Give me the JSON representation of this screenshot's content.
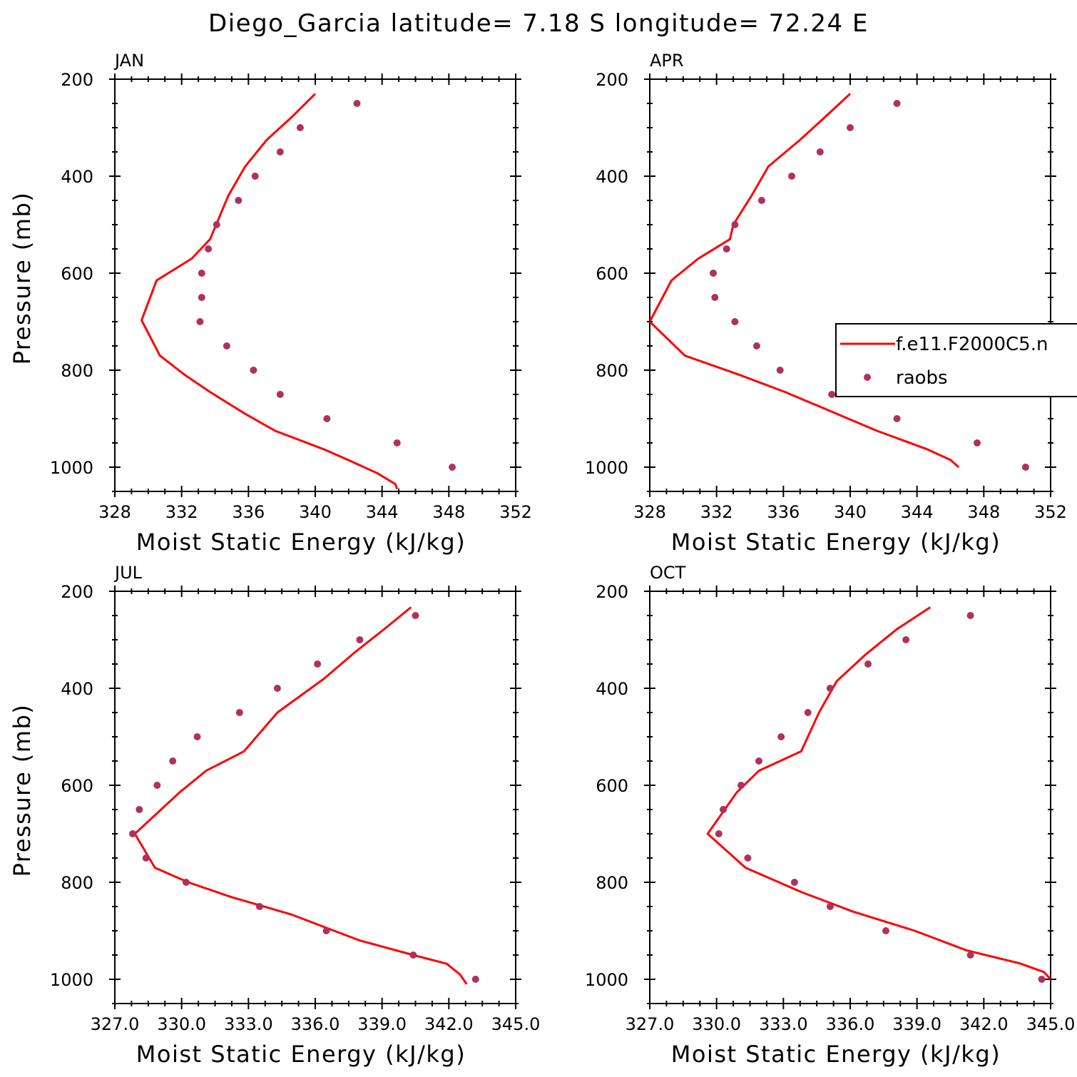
{
  "title": "Diego_Garcia  latitude= 7.18 S longitude= 72.24 E",
  "legend": {
    "model_label": "f.e11.F2000C5.n",
    "obs_label": "raobs"
  },
  "colors": {
    "model_line": "#ff0000",
    "obs_points": "#b03060",
    "axes": "#000000"
  },
  "chart_data": [
    {
      "type": "line",
      "panel_title": "JAN",
      "xlabel": "Moist Static Energy (kJ/kg)",
      "ylabel": "Pressure (mb)",
      "xlim": [
        328,
        352
      ],
      "xticks": [
        328,
        332,
        336,
        340,
        344,
        348,
        352
      ],
      "xtick_labels": [
        "328",
        "332",
        "336",
        "340",
        "344",
        "348",
        "352"
      ],
      "ylim": [
        200,
        1000
      ],
      "yticks": [
        200,
        400,
        600,
        800,
        1000
      ],
      "y_inverted": true,
      "series": [
        {
          "name": "f.e11.F2000C5.n",
          "kind": "line",
          "points": [
            [
              340.0,
              230
            ],
            [
              338.6,
              278
            ],
            [
              337.1,
              325
            ],
            [
              335.8,
              380
            ],
            [
              334.8,
              440
            ],
            [
              333.7,
              530
            ],
            [
              332.6,
              570
            ],
            [
              330.5,
              615
            ],
            [
              329.6,
              697
            ],
            [
              330.7,
              770
            ],
            [
              332.2,
              810
            ],
            [
              333.7,
              845
            ],
            [
              335.8,
              890
            ],
            [
              337.6,
              925
            ],
            [
              340.5,
              963
            ],
            [
              342.1,
              987
            ],
            [
              343.7,
              1012
            ],
            [
              344.8,
              1035
            ],
            [
              344.9,
              1045
            ]
          ]
        },
        {
          "name": "raobs",
          "kind": "scatter",
          "points": [
            [
              342.5,
              250
            ],
            [
              339.1,
              300
            ],
            [
              337.9,
              350
            ],
            [
              336.4,
              400
            ],
            [
              335.4,
              450
            ],
            [
              334.1,
              500
            ],
            [
              333.6,
              550
            ],
            [
              333.2,
              600
            ],
            [
              333.2,
              650
            ],
            [
              333.1,
              700
            ],
            [
              334.7,
              750
            ],
            [
              336.3,
              800
            ],
            [
              337.9,
              850
            ],
            [
              340.7,
              900
            ],
            [
              344.9,
              950
            ],
            [
              348.2,
              1000
            ]
          ]
        }
      ]
    },
    {
      "type": "line",
      "panel_title": "APR",
      "xlabel": "Moist Static Energy (kJ/kg)",
      "ylabel": "",
      "xlim": [
        328,
        352
      ],
      "xticks": [
        328,
        332,
        336,
        340,
        344,
        348,
        352
      ],
      "xtick_labels": [
        "328",
        "332",
        "336",
        "340",
        "344",
        "348",
        "352"
      ],
      "ylim": [
        200,
        1000
      ],
      "yticks": [
        200,
        400,
        600,
        800,
        1000
      ],
      "y_inverted": true,
      "series": [
        {
          "name": "f.e11.F2000C5.n",
          "kind": "line",
          "points": [
            [
              340.0,
              230
            ],
            [
              338.5,
              278
            ],
            [
              337.0,
              325
            ],
            [
              335.1,
              380
            ],
            [
              334.1,
              440
            ],
            [
              333.0,
              500
            ],
            [
              332.8,
              530
            ],
            [
              330.9,
              570
            ],
            [
              329.3,
              615
            ],
            [
              328.0,
              700
            ],
            [
              330.1,
              770
            ],
            [
              333.4,
              810
            ],
            [
              336.1,
              845
            ],
            [
              339.2,
              890
            ],
            [
              341.6,
              925
            ],
            [
              344.6,
              963
            ],
            [
              346.0,
              985
            ],
            [
              346.5,
              1000
            ]
          ]
        },
        {
          "name": "raobs",
          "kind": "scatter",
          "points": [
            [
              342.8,
              250
            ],
            [
              340.0,
              300
            ],
            [
              338.2,
              350
            ],
            [
              336.5,
              400
            ],
            [
              334.7,
              450
            ],
            [
              333.1,
              500
            ],
            [
              332.6,
              550
            ],
            [
              331.8,
              600
            ],
            [
              331.9,
              650
            ],
            [
              333.1,
              700
            ],
            [
              334.4,
              750
            ],
            [
              335.8,
              800
            ],
            [
              338.9,
              850
            ],
            [
              342.8,
              900
            ],
            [
              347.6,
              950
            ],
            [
              350.5,
              1000
            ]
          ]
        }
      ]
    },
    {
      "type": "line",
      "panel_title": "JUL",
      "xlabel": "Moist Static Energy (kJ/kg)",
      "ylabel": "Pressure (mb)",
      "xlim": [
        327.0,
        345.0
      ],
      "xticks": [
        327.0,
        330.0,
        333.0,
        336.0,
        339.0,
        342.0,
        345.0
      ],
      "xtick_labels": [
        "327.0",
        "330.0",
        "333.0",
        "336.0",
        "339.0",
        "342.0",
        "345.0"
      ],
      "ylim": [
        200,
        1000
      ],
      "yticks": [
        200,
        400,
        600,
        800,
        1000
      ],
      "y_inverted": true,
      "series": [
        {
          "name": "f.e11.F2000C5.n",
          "kind": "line",
          "points": [
            [
              340.3,
              233
            ],
            [
              339.1,
              278
            ],
            [
              337.8,
              325
            ],
            [
              336.4,
              380
            ],
            [
              334.3,
              450
            ],
            [
              332.8,
              530
            ],
            [
              331.1,
              570
            ],
            [
              329.9,
              615
            ],
            [
              327.9,
              700
            ],
            [
              328.8,
              770
            ],
            [
              330.3,
              800
            ],
            [
              332.2,
              830
            ],
            [
              334.9,
              866
            ],
            [
              338.0,
              920
            ],
            [
              340.4,
              950
            ],
            [
              341.9,
              968
            ],
            [
              342.5,
              990
            ],
            [
              342.8,
              1010
            ]
          ]
        },
        {
          "name": "raobs",
          "kind": "scatter",
          "points": [
            [
              340.5,
              250
            ],
            [
              338.0,
              300
            ],
            [
              336.1,
              350
            ],
            [
              334.3,
              400
            ],
            [
              332.6,
              450
            ],
            [
              330.7,
              500
            ],
            [
              329.6,
              550
            ],
            [
              328.9,
              600
            ],
            [
              328.1,
              650
            ],
            [
              327.8,
              700
            ],
            [
              328.4,
              750
            ],
            [
              330.2,
              800
            ],
            [
              333.5,
              850
            ],
            [
              336.5,
              900
            ],
            [
              340.4,
              950
            ],
            [
              343.2,
              1000
            ]
          ]
        }
      ]
    },
    {
      "type": "line",
      "panel_title": "OCT",
      "xlabel": "Moist Static Energy (kJ/kg)",
      "ylabel": "",
      "xlim": [
        327.0,
        345.0
      ],
      "xticks": [
        327.0,
        330.0,
        333.0,
        336.0,
        339.0,
        342.0,
        345.0
      ],
      "xtick_labels": [
        "327.0",
        "330.0",
        "333.0",
        "336.0",
        "339.0",
        "342.0",
        "345.0"
      ],
      "ylim": [
        200,
        1000
      ],
      "yticks": [
        200,
        400,
        600,
        800,
        1000
      ],
      "y_inverted": true,
      "series": [
        {
          "name": "f.e11.F2000C5.n",
          "kind": "line",
          "points": [
            [
              339.6,
              233
            ],
            [
              338.1,
              278
            ],
            [
              336.7,
              330
            ],
            [
              335.4,
              385
            ],
            [
              334.6,
              450
            ],
            [
              333.8,
              530
            ],
            [
              331.9,
              570
            ],
            [
              330.9,
              615
            ],
            [
              329.6,
              700
            ],
            [
              331.3,
              770
            ],
            [
              333.8,
              820
            ],
            [
              336.1,
              860
            ],
            [
              338.9,
              900
            ],
            [
              341.2,
              940
            ],
            [
              343.6,
              967
            ],
            [
              344.7,
              985
            ],
            [
              345.0,
              1000
            ]
          ]
        },
        {
          "name": "raobs",
          "kind": "scatter",
          "points": [
            [
              341.4,
              250
            ],
            [
              338.5,
              300
            ],
            [
              336.8,
              350
            ],
            [
              335.1,
              400
            ],
            [
              334.1,
              450
            ],
            [
              332.9,
              500
            ],
            [
              331.9,
              550
            ],
            [
              331.1,
              600
            ],
            [
              330.3,
              650
            ],
            [
              330.1,
              700
            ],
            [
              331.4,
              750
            ],
            [
              333.5,
              800
            ],
            [
              335.1,
              850
            ],
            [
              337.6,
              900
            ],
            [
              341.4,
              950
            ],
            [
              344.6,
              1000
            ]
          ]
        }
      ]
    }
  ]
}
